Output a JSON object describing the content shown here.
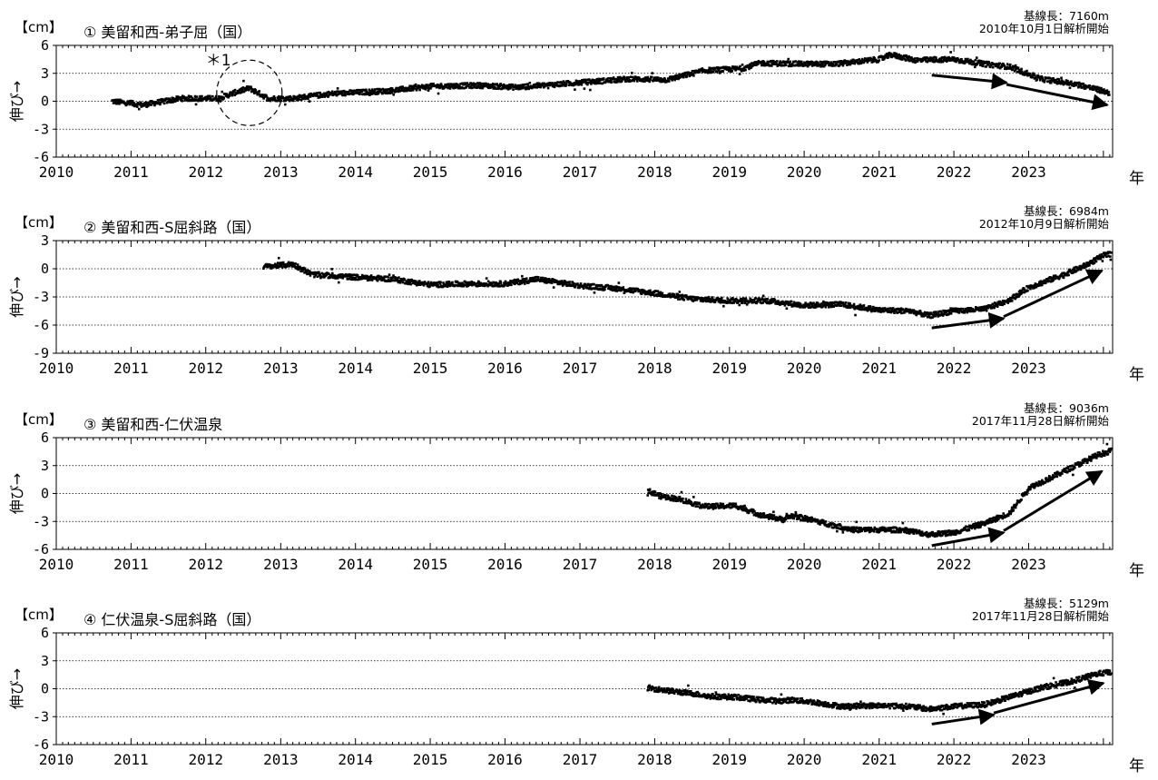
{
  "x_unit_label": "年",
  "x_ticks": [
    "2010",
    "2011",
    "2012",
    "2013",
    "2014",
    "2015",
    "2016",
    "2017",
    "2018",
    "2019",
    "2020",
    "2021",
    "2022",
    "2023"
  ],
  "chart_data": [
    {
      "type": "scatter",
      "unit": "【cm】",
      "ylabel": "伸び→",
      "title": "① 美留和西-弟子屈（国）",
      "baseline": "基線長：7160m",
      "analysis_start": "2010年10月1日解析開始",
      "annotation": "＊1",
      "ylim": [
        -6,
        6
      ],
      "yticks": [
        6,
        3,
        0,
        -3,
        -6
      ],
      "xlim": [
        "2010-01-01",
        "2024-02-15"
      ],
      "series": [
        {
          "points": [
            [
              "2010-10-01",
              0.0
            ],
            [
              "2011-03-01",
              -0.4
            ],
            [
              "2011-09-01",
              0.3
            ],
            [
              "2012-03-01",
              0.3
            ],
            [
              "2012-06-01",
              1.0
            ],
            [
              "2012-08-01",
              1.4
            ],
            [
              "2012-11-01",
              0.3
            ],
            [
              "2013-03-01",
              0.3
            ],
            [
              "2013-09-01",
              0.8
            ],
            [
              "2014-06-01",
              1.1
            ],
            [
              "2015-01-01",
              1.6
            ],
            [
              "2015-09-01",
              1.7
            ],
            [
              "2016-03-01",
              1.5
            ],
            [
              "2016-09-01",
              1.8
            ],
            [
              "2017-03-01",
              2.1
            ],
            [
              "2017-09-01",
              2.4
            ],
            [
              "2018-03-01",
              2.3
            ],
            [
              "2018-09-01",
              3.3
            ],
            [
              "2019-03-01",
              3.5
            ],
            [
              "2019-06-01",
              4.1
            ],
            [
              "2020-01-01",
              4.0
            ],
            [
              "2020-06-01",
              4.0
            ],
            [
              "2021-01-01",
              4.5
            ],
            [
              "2021-03-01",
              5.0
            ],
            [
              "2021-07-01",
              4.4
            ],
            [
              "2022-01-01",
              4.5
            ],
            [
              "2022-06-01",
              4.0
            ],
            [
              "2022-10-01",
              3.7
            ],
            [
              "2023-03-01",
              2.4
            ],
            [
              "2023-09-01",
              1.8
            ],
            [
              "2024-02-01",
              0.9
            ]
          ]
        }
      ],
      "arrows": [
        [
          [
            "2021-09-15",
            2.8
          ],
          [
            "2022-09-15",
            2.0
          ]
        ],
        [
          [
            "2022-09-15",
            1.8
          ],
          [
            "2024-01-20",
            -0.4
          ]
        ]
      ]
    },
    {
      "type": "scatter",
      "unit": "【cm】",
      "ylabel": "伸び→",
      "title": "② 美留和西-S屈斜路（国）",
      "baseline": "基線長：6984m",
      "analysis_start": "2012年10月9日解析開始",
      "ylim": [
        -9,
        3
      ],
      "yticks": [
        3,
        0,
        -3,
        -6,
        -9
      ],
      "xlim": [
        "2010-01-01",
        "2024-02-15"
      ],
      "series": [
        {
          "points": [
            [
              "2012-10-09",
              0.2
            ],
            [
              "2013-03-01",
              0.5
            ],
            [
              "2013-06-01",
              -0.6
            ],
            [
              "2014-01-01",
              -0.9
            ],
            [
              "2014-07-01",
              -1.1
            ],
            [
              "2015-01-01",
              -1.7
            ],
            [
              "2015-07-01",
              -1.6
            ],
            [
              "2016-01-01",
              -1.6
            ],
            [
              "2016-06-01",
              -1.1
            ],
            [
              "2017-01-01",
              -1.8
            ],
            [
              "2017-07-01",
              -2.1
            ],
            [
              "2018-01-01",
              -2.6
            ],
            [
              "2018-07-01",
              -3.2
            ],
            [
              "2019-01-01",
              -3.4
            ],
            [
              "2019-07-01",
              -3.4
            ],
            [
              "2020-01-01",
              -3.9
            ],
            [
              "2020-07-01",
              -3.8
            ],
            [
              "2021-01-01",
              -4.4
            ],
            [
              "2021-06-01",
              -4.5
            ],
            [
              "2021-09-01",
              -5.0
            ],
            [
              "2022-01-01",
              -4.5
            ],
            [
              "2022-06-01",
              -4.3
            ],
            [
              "2022-10-01",
              -3.3
            ],
            [
              "2023-01-01",
              -2.0
            ],
            [
              "2023-06-01",
              -0.8
            ],
            [
              "2023-10-01",
              0.3
            ],
            [
              "2024-01-01",
              1.4
            ],
            [
              "2024-02-10",
              1.6
            ]
          ]
        }
      ],
      "arrows": [
        [
          [
            "2021-09-15",
            -6.3
          ],
          [
            "2022-09-01",
            -5.3
          ]
        ],
        [
          [
            "2022-09-01",
            -5.1
          ],
          [
            "2023-12-25",
            -0.2
          ]
        ]
      ]
    },
    {
      "type": "scatter",
      "unit": "【cm】",
      "ylabel": "伸び→",
      "title": "③ 美留和西-仁伏温泉",
      "baseline": "基線長：9036m",
      "analysis_start": "2017年11月28日解析開始",
      "ylim": [
        -6,
        6
      ],
      "yticks": [
        6,
        3,
        0,
        -3,
        -6
      ],
      "xlim": [
        "2010-01-01",
        "2024-02-15"
      ],
      "series": [
        {
          "points": [
            [
              "2017-11-28",
              0.3
            ],
            [
              "2018-02-01",
              -0.3
            ],
            [
              "2018-05-01",
              -0.6
            ],
            [
              "2018-08-01",
              -1.2
            ],
            [
              "2018-09-15",
              -1.4
            ],
            [
              "2019-02-01",
              -1.3
            ],
            [
              "2019-06-01",
              -2.3
            ],
            [
              "2019-09-20",
              -2.8
            ],
            [
              "2019-11-01",
              -2.4
            ],
            [
              "2020-02-01",
              -2.8
            ],
            [
              "2020-05-01",
              -3.3
            ],
            [
              "2020-09-01",
              -3.9
            ],
            [
              "2021-01-01",
              -3.9
            ],
            [
              "2021-05-01",
              -3.9
            ],
            [
              "2021-09-01",
              -4.4
            ],
            [
              "2022-01-01",
              -4.2
            ],
            [
              "2022-06-01",
              -3.2
            ],
            [
              "2022-10-01",
              -2.1
            ],
            [
              "2023-01-01",
              0.6
            ],
            [
              "2023-04-01",
              1.5
            ],
            [
              "2023-08-01",
              2.8
            ],
            [
              "2023-12-01",
              4.1
            ],
            [
              "2024-02-10",
              4.6
            ]
          ]
        }
      ],
      "arrows": [
        [
          [
            "2021-09-15",
            -5.6
          ],
          [
            "2022-09-01",
            -4.2
          ]
        ],
        [
          [
            "2022-09-01",
            -4.0
          ],
          [
            "2023-12-25",
            2.4
          ]
        ]
      ]
    },
    {
      "type": "scatter",
      "unit": "【cm】",
      "ylabel": "伸び→",
      "title": "④ 仁伏温泉-S屈斜路（国）",
      "baseline": "基線長：5129m",
      "analysis_start": "2017年11月28日解析開始",
      "ylim": [
        -6,
        6
      ],
      "yticks": [
        6,
        3,
        0,
        -3,
        -6
      ],
      "xlim": [
        "2010-01-01",
        "2024-02-15"
      ],
      "series": [
        {
          "points": [
            [
              "2017-11-28",
              0.1
            ],
            [
              "2018-03-01",
              -0.2
            ],
            [
              "2018-08-01",
              -0.6
            ],
            [
              "2018-09-15",
              -0.8
            ],
            [
              "2019-02-01",
              -0.9
            ],
            [
              "2019-06-01",
              -1.2
            ],
            [
              "2019-09-20",
              -1.3
            ],
            [
              "2019-11-01",
              -1.2
            ],
            [
              "2020-02-01",
              -1.4
            ],
            [
              "2020-07-01",
              -1.9
            ],
            [
              "2021-01-01",
              -1.8
            ],
            [
              "2021-06-01",
              -1.9
            ],
            [
              "2021-09-01",
              -2.2
            ],
            [
              "2022-01-01",
              -1.9
            ],
            [
              "2022-06-01",
              -1.7
            ],
            [
              "2022-10-01",
              -0.9
            ],
            [
              "2023-03-01",
              0.1
            ],
            [
              "2023-08-01",
              0.8
            ],
            [
              "2023-12-01",
              1.6
            ],
            [
              "2024-02-10",
              1.8
            ]
          ]
        }
      ],
      "arrows": [
        [
          [
            "2021-09-15",
            -3.8
          ],
          [
            "2022-07-15",
            -2.8
          ]
        ],
        [
          [
            "2022-07-15",
            -2.6
          ],
          [
            "2024-01-01",
            0.6
          ]
        ]
      ]
    }
  ]
}
